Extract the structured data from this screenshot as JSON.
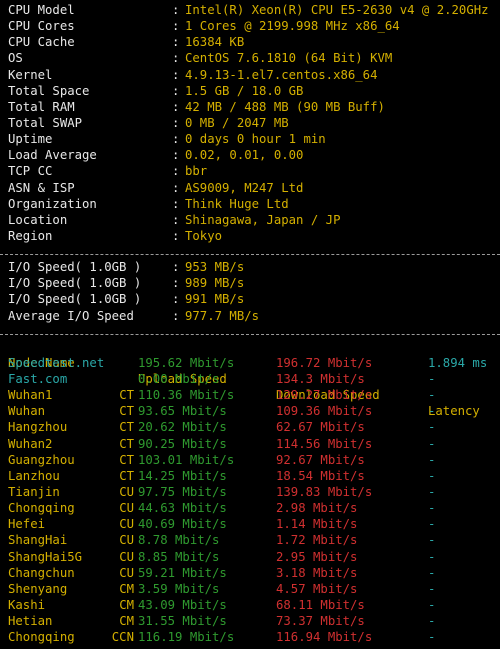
{
  "colors": {
    "background": "#000000",
    "label": "#e8e8e8",
    "value": "#d4b000",
    "upload": "#2f9a2f",
    "download": "#d03030",
    "latency": "#2aa8a8"
  },
  "system_info": [
    {
      "key": "CPU Model",
      "value": "Intel(R) Xeon(R) CPU E5-2630 v4 @ 2.20GHz"
    },
    {
      "key": "CPU Cores",
      "value": "1 Cores @ 2199.998 MHz x86_64"
    },
    {
      "key": "CPU Cache",
      "value": "16384 KB"
    },
    {
      "key": "OS",
      "value": "CentOS 7.6.1810 (64 Bit) KVM"
    },
    {
      "key": "Kernel",
      "value": "4.9.13-1.el7.centos.x86_64"
    },
    {
      "key": "Total Space",
      "value": "1.5 GB / 18.0 GB"
    },
    {
      "key": "Total RAM",
      "value": "42 MB / 488 MB (90 MB Buff)"
    },
    {
      "key": "Total SWAP",
      "value": "0 MB / 2047 MB"
    },
    {
      "key": "Uptime",
      "value": "0 days 0 hour 1 min"
    },
    {
      "key": "Load Average",
      "value": "0.02, 0.01, 0.00"
    },
    {
      "key": "TCP CC",
      "value": "bbr"
    },
    {
      "key": "ASN & ISP",
      "value": "AS9009, M247 Ltd"
    },
    {
      "key": "Organization",
      "value": "Think Huge Ltd"
    },
    {
      "key": "Location",
      "value": "Shinagawa, Japan / JP"
    },
    {
      "key": "Region",
      "value": "Tokyo"
    }
  ],
  "separator": ":",
  "io": [
    {
      "key": "I/O Speed( 1.0GB )",
      "value": "953 MB/s"
    },
    {
      "key": "I/O Speed( 1.0GB )",
      "value": "989 MB/s"
    },
    {
      "key": "I/O Speed( 1.0GB )",
      "value": "991 MB/s"
    },
    {
      "key": "Average I/O Speed",
      "value": "977.7 MB/s"
    }
  ],
  "speed_header": {
    "node": "Node Name",
    "upload": "Upload Speed",
    "download": "Download Speed",
    "latency": "Latency"
  },
  "speed_rows": [
    {
      "node": "Speedtest.net",
      "isp": "",
      "upload": "195.62 Mbit/s",
      "download": "196.72 Mbit/s",
      "latency": "1.894 ms"
    },
    {
      "node": "Fast.com",
      "isp": "",
      "upload": "0.00 Mbit/s",
      "download": "134.3 Mbit/s",
      "latency": "-"
    },
    {
      "node": "Wuhan1",
      "isp": "CT",
      "upload": "110.36 Mbit/s",
      "download": "129.27 Mbit/s",
      "latency": "-"
    },
    {
      "node": "Wuhan",
      "isp": "CT",
      "upload": "93.65 Mbit/s",
      "download": "109.36 Mbit/s",
      "latency": "-"
    },
    {
      "node": "Hangzhou",
      "isp": "CT",
      "upload": "20.62 Mbit/s",
      "download": "62.67 Mbit/s",
      "latency": "-"
    },
    {
      "node": "Wuhan2",
      "isp": "CT",
      "upload": "90.25 Mbit/s",
      "download": "114.56 Mbit/s",
      "latency": "-"
    },
    {
      "node": "Guangzhou",
      "isp": "CT",
      "upload": "103.01 Mbit/s",
      "download": "92.67 Mbit/s",
      "latency": "-"
    },
    {
      "node": "Lanzhou",
      "isp": "CT",
      "upload": "14.25 Mbit/s",
      "download": "18.54 Mbit/s",
      "latency": "-"
    },
    {
      "node": "Tianjin",
      "isp": "CU",
      "upload": "97.75 Mbit/s",
      "download": "139.83 Mbit/s",
      "latency": "-"
    },
    {
      "node": "Chongqing",
      "isp": "CU",
      "upload": "44.63 Mbit/s",
      "download": "2.98 Mbit/s",
      "latency": "-"
    },
    {
      "node": "Hefei",
      "isp": "CU",
      "upload": "40.69 Mbit/s",
      "download": "1.14 Mbit/s",
      "latency": "-"
    },
    {
      "node": "ShangHai",
      "isp": "CU",
      "upload": "8.78 Mbit/s",
      "download": "1.72 Mbit/s",
      "latency": "-"
    },
    {
      "node": "ShangHai5G",
      "isp": "CU",
      "upload": "8.85 Mbit/s",
      "download": "2.95 Mbit/s",
      "latency": "-"
    },
    {
      "node": "Changchun",
      "isp": "CU",
      "upload": "59.21 Mbit/s",
      "download": "3.18 Mbit/s",
      "latency": "-"
    },
    {
      "node": "Shenyang",
      "isp": "CM",
      "upload": "3.59 Mbit/s",
      "download": "4.57 Mbit/s",
      "latency": "-"
    },
    {
      "node": "Kashi",
      "isp": "CM",
      "upload": "43.09 Mbit/s",
      "download": "68.11 Mbit/s",
      "latency": "-"
    },
    {
      "node": "Hetian",
      "isp": "CM",
      "upload": "31.55 Mbit/s",
      "download": "73.37 Mbit/s",
      "latency": "-"
    },
    {
      "node": "Chongqing",
      "isp": "CCN",
      "upload": "116.19 Mbit/s",
      "download": "116.94 Mbit/s",
      "latency": "-"
    }
  ]
}
